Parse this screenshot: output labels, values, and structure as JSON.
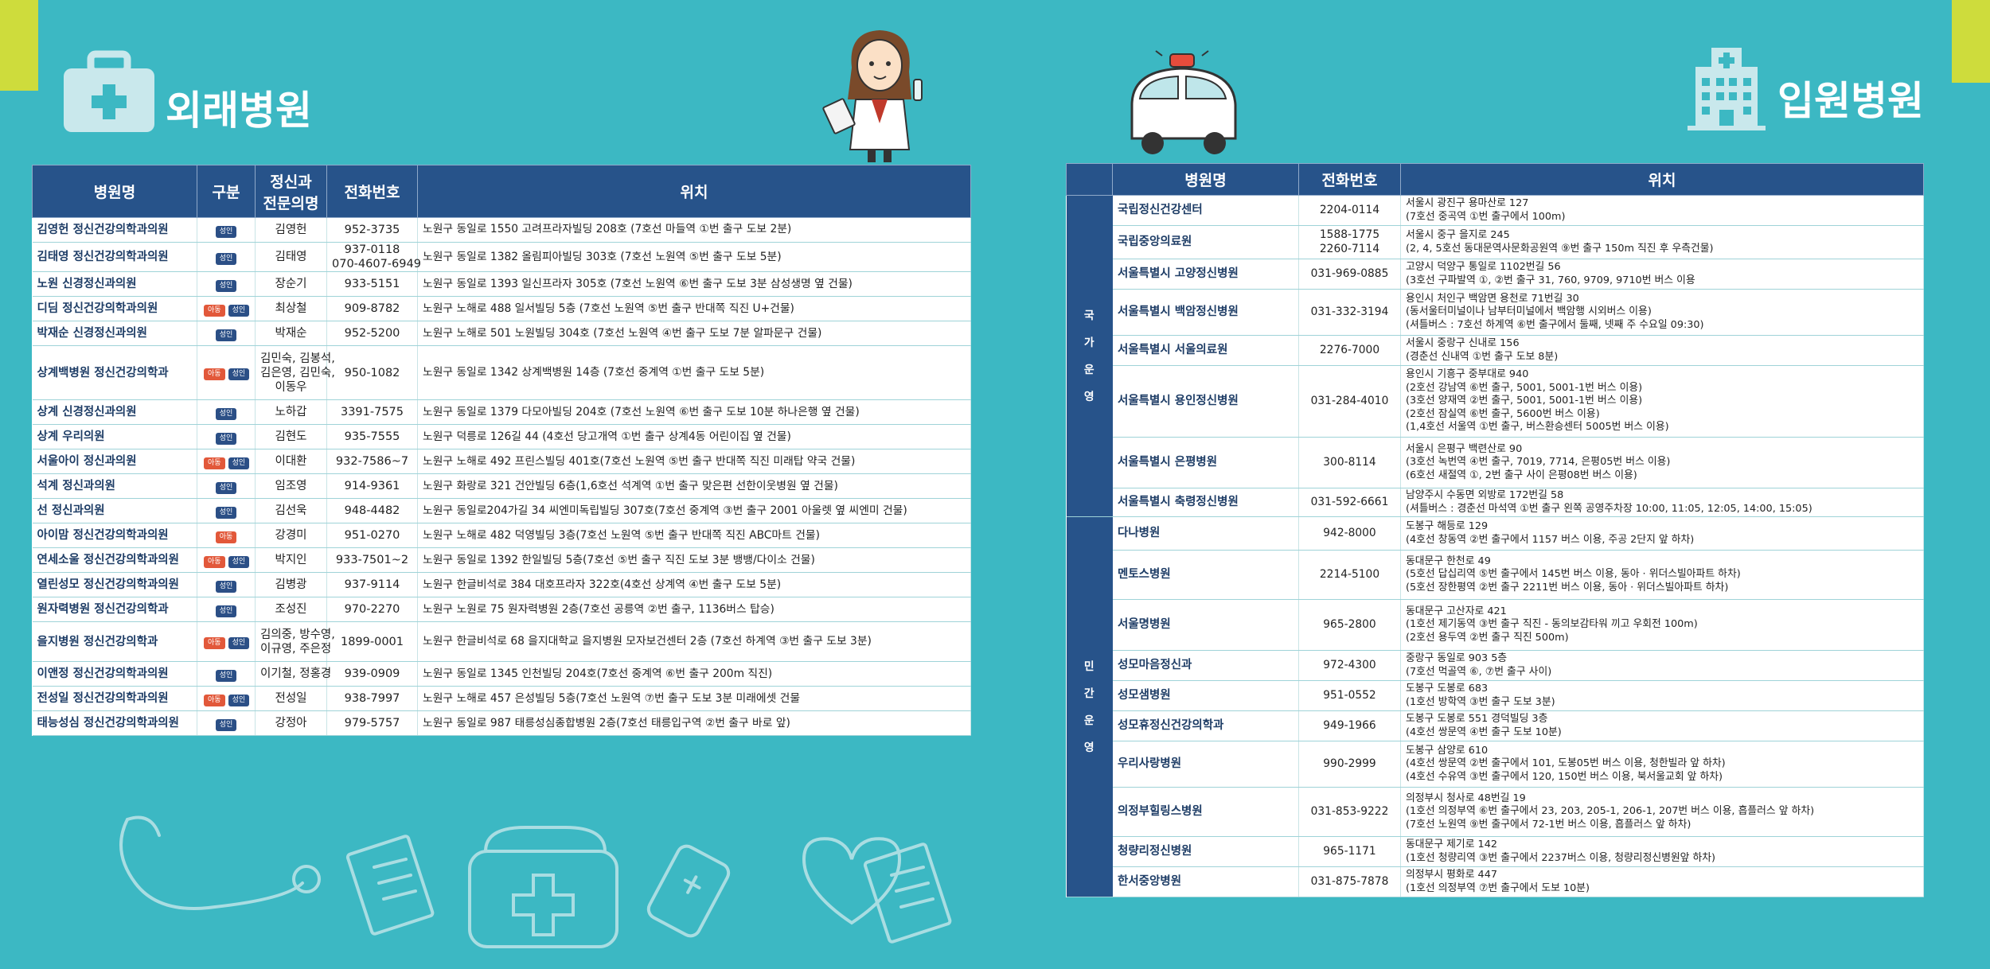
{
  "outpatient": {
    "title": "외래병원",
    "headers": {
      "name": "병원명",
      "type": "구분",
      "doctor_l1": "정신과",
      "doctor_l2": "전문의명",
      "phone": "전화번호",
      "location": "위치"
    },
    "badges": {
      "adult": "성인",
      "child": "아동"
    },
    "rows": [
      {
        "name": "김영헌 정신건강의학과의원",
        "badges": [
          "adult"
        ],
        "doctors": [
          "김영헌"
        ],
        "phones": [
          "952-3735"
        ],
        "location": "노원구 동일로 1550 고려프라자빌딩 208호 (7호선 마들역 ①번 출구 도보 2분)"
      },
      {
        "name": "김태영 정신건강의학과의원",
        "badges": [
          "adult"
        ],
        "doctors": [
          "김태영"
        ],
        "phones": [
          "937-0118",
          "070-4607-6949"
        ],
        "location": "노원구 동일로 1382 올림피아빌딩 303호 (7호선 노원역 ⑤번 출구 도보 5분)"
      },
      {
        "name": "노원 신경정신과의원",
        "badges": [
          "adult"
        ],
        "doctors": [
          "장순기"
        ],
        "phones": [
          "933-5151"
        ],
        "location": "노원구 동일로 1393 일신프라자 305호 (7호선 노원역 ⑥번 출구 도보 3분 삼성생명 옆 건물)"
      },
      {
        "name": "디딤 정신건강의학과의원",
        "badges": [
          "child",
          "adult"
        ],
        "doctors": [
          "최상철"
        ],
        "phones": [
          "909-8782"
        ],
        "location": "노원구 노해로 488 일서빌딩 5층 (7호선 노원역 ⑤번 출구 반대쪽 직진 U+건물)"
      },
      {
        "name": "박재순 신경정신과의원",
        "badges": [
          "adult"
        ],
        "doctors": [
          "박재순"
        ],
        "phones": [
          "952-5200"
        ],
        "location": "노원구 노해로 501 노원빌딩 304호 (7호선 노원역 ④번 출구 도보 7분 알파문구 건물)"
      },
      {
        "name": "상계백병원 정신건강의학과",
        "badges": [
          "child",
          "adult"
        ],
        "doctors": [
          "김민숙, 김봉석,",
          "김은영, 김민숙,",
          "이동우"
        ],
        "phones": [
          "950-1082"
        ],
        "location": "노원구 동일로 1342 상계백병원 14층 (7호선 중계역 ①번 출구 도보 5분)"
      },
      {
        "name": "상계 신경정신과의원",
        "badges": [
          "adult"
        ],
        "doctors": [
          "노하갑"
        ],
        "phones": [
          "3391-7575"
        ],
        "location": "노원구 동일로 1379 다모아빌딩 204호 (7호선 노원역 ⑥번 출구 도보 10분 하나은행 옆 건물)"
      },
      {
        "name": "상계 우리의원",
        "badges": [
          "adult"
        ],
        "doctors": [
          "김현도"
        ],
        "phones": [
          "935-7555"
        ],
        "location": "노원구 덕릉로 126길 44 (4호선 당고개역 ①번 출구 상계4동 어린이집 옆 건물)"
      },
      {
        "name": "서울아이 정신과의원",
        "badges": [
          "child",
          "adult"
        ],
        "doctors": [
          "이대환"
        ],
        "phones": [
          "932-7586~7"
        ],
        "location": "노원구 노해로 492 프린스빌딩 401호(7호선 노원역 ⑤번 출구 반대쪽 직진 미래탑 약국 건물)"
      },
      {
        "name": "석계 정신과의원",
        "badges": [
          "adult"
        ],
        "doctors": [
          "임조영"
        ],
        "phones": [
          "914-9361"
        ],
        "location": "노원구 화랑로 321 건안빌딩 6층(1,6호선 석계역 ①번 출구 맞은편 선한이웃병원 옆 건물)"
      },
      {
        "name": "선 정신과의원",
        "badges": [
          "adult"
        ],
        "doctors": [
          "김선욱"
        ],
        "phones": [
          "948-4482"
        ],
        "location": "노원구 동일로204가길 34 씨엔미독립빌딩 307호(7호선 중계역 ③번 출구 2001 아울렛 옆 씨엔미 건물)"
      },
      {
        "name": "아이맘 정신건강의학과의원",
        "badges": [
          "child"
        ],
        "doctors": [
          "강경미"
        ],
        "phones": [
          "951-0270"
        ],
        "location": "노원구 노해로 482 덕영빌딩 3층(7호선 노원역 ⑤번 출구 반대쪽 직진 ABC마트 건물)"
      },
      {
        "name": "연세소울 정신건강의학과의원",
        "badges": [
          "child",
          "adult"
        ],
        "doctors": [
          "박지인"
        ],
        "phones": [
          "933-7501~2"
        ],
        "location": "노원구 동일로 1392 한일빌딩 5층(7호선 ⑤번 출구 직진 도보 3분 뱅뱅/다이소 건물)"
      },
      {
        "name": "열린성모 정신건강의학과의원",
        "badges": [
          "adult"
        ],
        "doctors": [
          "김병광"
        ],
        "phones": [
          "937-9114"
        ],
        "location": "노원구 한글비석로 384 대호프라자 322호(4호선 상계역 ④번 출구 도보 5분)"
      },
      {
        "name": "원자력병원 정신건강의학과",
        "badges": [
          "adult"
        ],
        "doctors": [
          "조성진"
        ],
        "phones": [
          "970-2270"
        ],
        "location": "노원구 노원로 75 원자력병원 2층(7호선 공릉역 ②번 출구, 1136버스 탑승)"
      },
      {
        "name": "을지병원 정신건강의학과",
        "badges": [
          "child",
          "adult"
        ],
        "doctors": [
          "김의중, 방수영,",
          "이규영, 주은정"
        ],
        "phones": [
          "1899-0001"
        ],
        "location": "노원구 한글비석로 68 을지대학교 을지병원 모자보건센터 2층 (7호선 하계역 ③번 출구 도보 3분)"
      },
      {
        "name": "이앤정 정신건강의학과의원",
        "badges": [
          "adult"
        ],
        "doctors": [
          "이기철, 정홍경"
        ],
        "phones": [
          "939-0909"
        ],
        "location": "노원구 동일로 1345 인천빌딩 204호(7호선 중계역 ⑥번 출구 200m 직진)"
      },
      {
        "name": "전성일 정신건강의학과의원",
        "badges": [
          "child",
          "adult"
        ],
        "doctors": [
          "전성일"
        ],
        "phones": [
          "938-7997"
        ],
        "location": "노원구 노해로 457 은성빌딩 5층(7호선 노원역 ⑦번 출구 도보 3분 미래에셋 건물"
      },
      {
        "name": "태능성심 정신건강의학과의원",
        "badges": [
          "adult"
        ],
        "doctors": [
          "강정아"
        ],
        "phones": [
          "979-5757"
        ],
        "location": "노원구 동일로 987 태릉성심종합병원 2층(7호선 태릉입구역 ②번 출구 바로 앞)"
      }
    ]
  },
  "inpatient": {
    "title": "입원병원",
    "headers": {
      "name": "병원명",
      "phone": "전화번호",
      "location": "위치"
    },
    "groups": [
      {
        "label": [
          "국",
          "가",
          "운",
          "영"
        ],
        "rows": [
          {
            "name": "국립정신건강센터",
            "phones": [
              "2204-0114"
            ],
            "location": [
              "서울시 광진구 용마산로 127",
              "(7호선 중곡역 ①번 출구에서 100m)"
            ]
          },
          {
            "name": "국립중앙의료원",
            "phones": [
              "1588-1775",
              "2260-7114"
            ],
            "location": [
              "서울시 중구 을지로 245",
              "(2, 4, 5호선 동대문역사문화공원역 ⑨번 출구 150m 직진 후 우측건물)"
            ]
          },
          {
            "name": "서울특별시 고양정신병원",
            "phones": [
              "031-969-0885"
            ],
            "location": [
              "고양시 덕양구 통일로 1102번길 56",
              "(3호선 구파발역 ①, ②번 출구 31, 760, 9709, 9710번 버스 이용"
            ]
          },
          {
            "name": "서울특별시 백암정신병원",
            "phones": [
              "031-332-3194"
            ],
            "location": [
              "용인시 처인구 백암면 용천로 71번길 30",
              "(동서울터미널이나 남부터미널에서 백암행 시외버스 이용)",
              "(셔틀버스 : 7호선 하계역 ⑥번 출구에서 둘째, 넷째 주 수요일 09:30)"
            ]
          },
          {
            "name": "서울특별시 서울의료원",
            "phones": [
              "2276-7000"
            ],
            "location": [
              "서울시 중랑구 신내로 156",
              "(경춘선 신내역 ①번 출구 도보 8분)"
            ]
          },
          {
            "name": "서울특별시 용인정신병원",
            "phones": [
              "031-284-4010"
            ],
            "location": [
              "용인시 기흥구 중부대로 940",
              "(2호선 강남역 ⑥번 출구, 5001, 5001-1번 버스 이용)",
              "(3호선 양재역 ②번 출구, 5001, 5001-1번 버스 이용)",
              "(2호선 잠실역 ⑥번 출구, 5600번 버스 이용)",
              "(1,4호선 서울역 ①번 출구, 버스환승센터 5005번 버스 이용)"
            ]
          },
          {
            "name": "서울특별시 은평병원",
            "phones": [
              "300-8114"
            ],
            "location": [
              "서울시 은평구 백련산로 90",
              "(3호선 녹번역 ④번 출구, 7019, 7714, 은평05번 버스 이용)",
              "(6호선 새절역 ①, 2번 출구 사이 은평08번 버스 이용)"
            ]
          },
          {
            "name": "서울특별시 축령정신병원",
            "phones": [
              "031-592-6661"
            ],
            "location": [
              "남양주시 수동면 외방로 172번길 58",
              "(셔틀버스 : 경춘선 마석역 ①번 출구 왼쪽 공영주차장 10:00, 11:05, 12:05, 14:00, 15:05)"
            ]
          }
        ]
      },
      {
        "label": [
          "민",
          "간",
          "운",
          "영"
        ],
        "rows": [
          {
            "name": "다나병원",
            "phones": [
              "942-8000"
            ],
            "location": [
              "도봉구 해등로 129",
              "(4호선 창동역 ②번 출구에서 1157 버스 이용, 주공 2단지 앞 하차)"
            ]
          },
          {
            "name": "멘토스병원",
            "phones": [
              "2214-5100"
            ],
            "location": [
              "동대문구 한천로 49",
              "(5호선 답십리역 ⑤번 출구에서 145번 버스 이용, 동아 · 위더스빌아파트 하차)",
              "(5호선 장한평역 ②번 출구 2211번 버스 이용, 동아 · 위더스빌아파트 하차)"
            ]
          },
          {
            "name": "서울명병원",
            "phones": [
              "965-2800"
            ],
            "location": [
              "동대문구 고산자로 421",
              "(1호선 제기동역 ③번 출구 직진 - 동의보감타워 끼고 우회전 100m)",
              "(2호선 용두역 ②번 출구 직진 500m)"
            ]
          },
          {
            "name": "성모마음정신과",
            "phones": [
              "972-4300"
            ],
            "location": [
              "중랑구 동일로 903 5층",
              "(7호선 먹골역 ⑥, ⑦번 출구 사이)"
            ]
          },
          {
            "name": "성모샘병원",
            "phones": [
              "951-0552"
            ],
            "location": [
              "도봉구 도봉로 683",
              "(1호선 방학역 ③번 출구 도보 3분)"
            ]
          },
          {
            "name": "성모휴정신건강의학과",
            "phones": [
              "949-1966"
            ],
            "location": [
              "도봉구 도봉로 551 경덕빌딩 3층",
              "(4호선 쌍문역 ④번 출구 도보 10분)"
            ]
          },
          {
            "name": "우리사랑병원",
            "phones": [
              "990-2999"
            ],
            "location": [
              "도봉구 삼양로 610",
              "(4호선 쌍문역 ②번 출구에서 101, 도봉05번 버스 이용, 청한빌라 앞 하차)",
              "(4호선 수유역 ③번 출구에서 120, 150번 버스 이용, 북서울교회 앞 하차)"
            ]
          },
          {
            "name": "의정부힐링스병원",
            "phones": [
              "031-853-9222"
            ],
            "location": [
              "의정부시 청사로 48번길 19",
              "(1호선 의정부역 ⑥번 출구에서  23, 203, 205-1, 206-1, 207번 버스 이용, 흡플러스 앞 하차)",
              "(7호선 노원역 ⑨번 출구에서 72-1번 버스 이용, 흡플러스 앞 하차)"
            ]
          },
          {
            "name": "청량리정신병원",
            "phones": [
              "965-1171"
            ],
            "location": [
              "동대문구 제기로 142",
              "(1호선 청량리역 ③번 출구에서 2237버스 이용, 청량리정신병원앞 하차)"
            ]
          },
          {
            "name": "한서중앙병원",
            "phones": [
              "031-875-7878"
            ],
            "location": [
              "의정부시 평화로 447",
              "(1호선 의정부역 ⑦번 출구에서 도보 10분)"
            ]
          }
        ]
      }
    ]
  },
  "icons": {
    "outpatient": "first-aid-kit-icon",
    "inpatient": "hospital-building-icon"
  },
  "colors": {
    "background": "#3cb8c3",
    "header": "#27538a",
    "accent": "#cedc3c",
    "badge_adult": "#2b4f86",
    "badge_child": "#e2583a"
  }
}
